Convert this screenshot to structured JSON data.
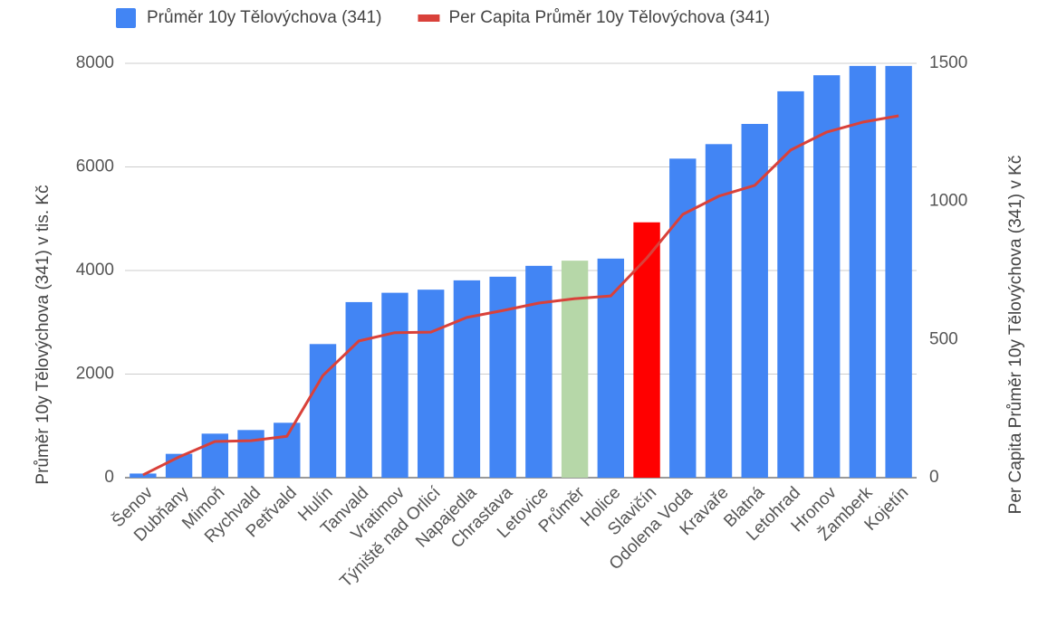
{
  "chart_data": {
    "type": "bar",
    "categories": [
      "Šenov",
      "Dubňany",
      "Mimoň",
      "Rychvald",
      "Petřvald",
      "Hulín",
      "Tanvald",
      "Vratimov",
      "Týniště nad Orlicí",
      "Napajedla",
      "Chrastava",
      "Letovice",
      "Průměr",
      "Holice",
      "Slavičín",
      "Odolena Voda",
      "Kravaře",
      "Blatná",
      "Letohrad",
      "Hronov",
      "Žamberk",
      "Kojetín"
    ],
    "series": [
      {
        "name": "Průměr 10y Tělovýchova (341)",
        "type": "bar",
        "color": "#4285f4",
        "colors": [
          "#4285f4",
          "#4285f4",
          "#4285f4",
          "#4285f4",
          "#4285f4",
          "#4285f4",
          "#4285f4",
          "#4285f4",
          "#4285f4",
          "#4285f4",
          "#4285f4",
          "#4285f4",
          "#b6d7a8",
          "#4285f4",
          "#ff0000",
          "#4285f4",
          "#4285f4",
          "#4285f4",
          "#4285f4",
          "#4285f4",
          "#4285f4",
          "#4285f4"
        ],
        "values": [
          80,
          460,
          850,
          920,
          1060,
          2580,
          3390,
          3570,
          3630,
          3810,
          3880,
          4090,
          4190,
          4230,
          4930,
          6160,
          6440,
          6830,
          7460,
          7770,
          7950,
          7950
        ]
      },
      {
        "name": "Per Capita Průměr 10y Tělovýchova (341)",
        "type": "line",
        "axis": "y2",
        "color": "#d9413a",
        "values": [
          10,
          75,
          131,
          134,
          150,
          370,
          495,
          525,
          527,
          580,
          605,
          632,
          648,
          658,
          795,
          953,
          1019,
          1058,
          1186,
          1251,
          1287,
          1310
        ]
      }
    ],
    "ylabel": "Průměr 10y Tělovýchova (341) v tis. Kč",
    "y2label": "Per Capita Průměr 10y Tělovýchova (341) v Kč",
    "ylim": [
      0,
      8000
    ],
    "yticks": [
      0,
      2000,
      4000,
      6000,
      8000
    ],
    "y2lim": [
      0,
      1500
    ],
    "y2ticks": [
      0,
      500,
      1000,
      1500
    ],
    "grid": true,
    "legend": "top"
  }
}
